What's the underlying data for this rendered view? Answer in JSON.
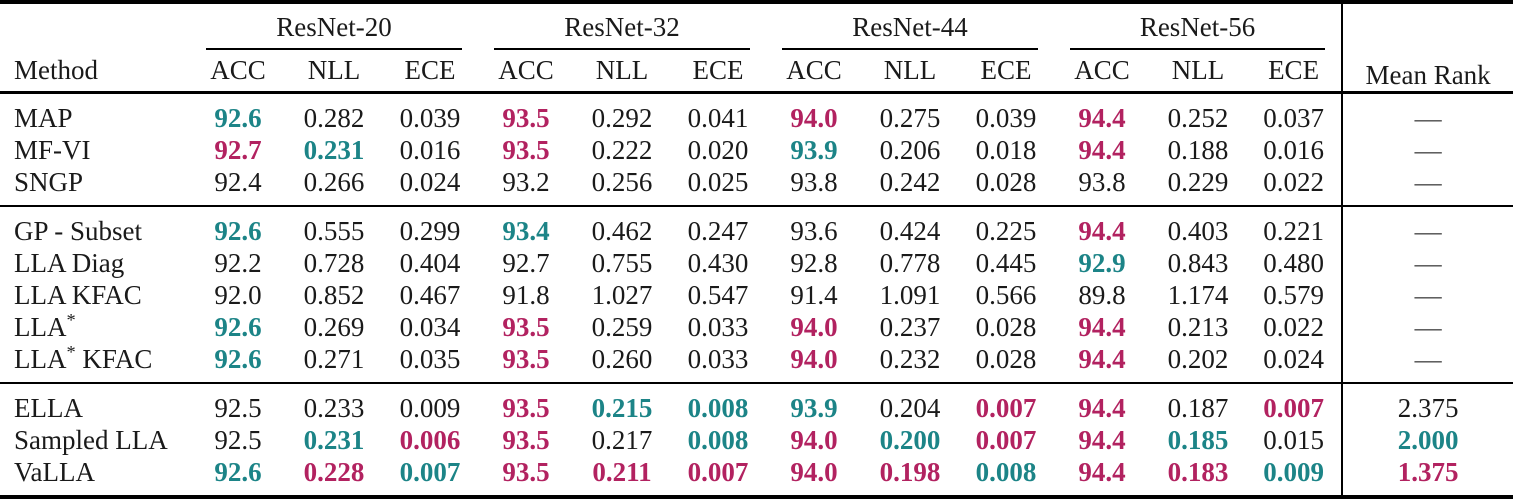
{
  "colors": {
    "teal": "#1c8487",
    "magenta": "#b22260",
    "text": "#1a1a1a",
    "rule": "#000000"
  },
  "table": {
    "method_header": "Method",
    "mean_rank_header": "Mean Rank",
    "groups": [
      {
        "label": "ResNet-20"
      },
      {
        "label": "ResNet-32"
      },
      {
        "label": "ResNet-44"
      },
      {
        "label": "ResNet-56"
      }
    ],
    "metrics": [
      "ACC",
      "NLL",
      "ECE"
    ],
    "no_rank_symbol": "—",
    "sections": [
      {
        "rows": [
          {
            "method": "MAP",
            "cells": [
              [
                "92.6",
                "t"
              ],
              [
                "0.282",
                ""
              ],
              [
                "0.039",
                ""
              ],
              [
                "93.5",
                "m"
              ],
              [
                "0.292",
                ""
              ],
              [
                "0.041",
                ""
              ],
              [
                "94.0",
                "m"
              ],
              [
                "0.275",
                ""
              ],
              [
                "0.039",
                ""
              ],
              [
                "94.4",
                "m"
              ],
              [
                "0.252",
                ""
              ],
              [
                "0.037",
                ""
              ]
            ],
            "rank": "—",
            "rank_c": ""
          },
          {
            "method": "MF-VI",
            "cells": [
              [
                "92.7",
                "m"
              ],
              [
                "0.231",
                "t"
              ],
              [
                "0.016",
                ""
              ],
              [
                "93.5",
                "m"
              ],
              [
                "0.222",
                ""
              ],
              [
                "0.020",
                ""
              ],
              [
                "93.9",
                "t"
              ],
              [
                "0.206",
                ""
              ],
              [
                "0.018",
                ""
              ],
              [
                "94.4",
                "m"
              ],
              [
                "0.188",
                ""
              ],
              [
                "0.016",
                ""
              ]
            ],
            "rank": "—",
            "rank_c": ""
          },
          {
            "method": "SNGP",
            "cells": [
              [
                "92.4",
                ""
              ],
              [
                "0.266",
                ""
              ],
              [
                "0.024",
                ""
              ],
              [
                "93.2",
                ""
              ],
              [
                "0.256",
                ""
              ],
              [
                "0.025",
                ""
              ],
              [
                "93.8",
                ""
              ],
              [
                "0.242",
                ""
              ],
              [
                "0.028",
                ""
              ],
              [
                "93.8",
                ""
              ],
              [
                "0.229",
                ""
              ],
              [
                "0.022",
                ""
              ]
            ],
            "rank": "—",
            "rank_c": ""
          }
        ]
      },
      {
        "rows": [
          {
            "method": "GP - Subset",
            "cells": [
              [
                "92.6",
                "t"
              ],
              [
                "0.555",
                ""
              ],
              [
                "0.299",
                ""
              ],
              [
                "93.4",
                "t"
              ],
              [
                "0.462",
                ""
              ],
              [
                "0.247",
                ""
              ],
              [
                "93.6",
                ""
              ],
              [
                "0.424",
                ""
              ],
              [
                "0.225",
                ""
              ],
              [
                "94.4",
                "m"
              ],
              [
                "0.403",
                ""
              ],
              [
                "0.221",
                ""
              ]
            ],
            "rank": "—",
            "rank_c": ""
          },
          {
            "method": "LLA Diag",
            "cells": [
              [
                "92.2",
                ""
              ],
              [
                "0.728",
                ""
              ],
              [
                "0.404",
                ""
              ],
              [
                "92.7",
                ""
              ],
              [
                "0.755",
                ""
              ],
              [
                "0.430",
                ""
              ],
              [
                "92.8",
                ""
              ],
              [
                "0.778",
                ""
              ],
              [
                "0.445",
                ""
              ],
              [
                "92.9",
                "t"
              ],
              [
                "0.843",
                ""
              ],
              [
                "0.480",
                ""
              ]
            ],
            "rank": "—",
            "rank_c": ""
          },
          {
            "method": "LLA KFAC",
            "cells": [
              [
                "92.0",
                ""
              ],
              [
                "0.852",
                ""
              ],
              [
                "0.467",
                ""
              ],
              [
                "91.8",
                ""
              ],
              [
                "1.027",
                ""
              ],
              [
                "0.547",
                ""
              ],
              [
                "91.4",
                ""
              ],
              [
                "1.091",
                ""
              ],
              [
                "0.566",
                ""
              ],
              [
                "89.8",
                ""
              ],
              [
                "1.174",
                ""
              ],
              [
                "0.579",
                ""
              ]
            ],
            "rank": "—",
            "rank_c": ""
          },
          {
            "method": "LLA*",
            "cells": [
              [
                "92.6",
                "t"
              ],
              [
                "0.269",
                ""
              ],
              [
                "0.034",
                ""
              ],
              [
                "93.5",
                "m"
              ],
              [
                "0.259",
                ""
              ],
              [
                "0.033",
                ""
              ],
              [
                "94.0",
                "m"
              ],
              [
                "0.237",
                ""
              ],
              [
                "0.028",
                ""
              ],
              [
                "94.4",
                "m"
              ],
              [
                "0.213",
                ""
              ],
              [
                "0.022",
                ""
              ]
            ],
            "rank": "—",
            "rank_c": ""
          },
          {
            "method": "LLA* KFAC",
            "cells": [
              [
                "92.6",
                "t"
              ],
              [
                "0.271",
                ""
              ],
              [
                "0.035",
                ""
              ],
              [
                "93.5",
                "m"
              ],
              [
                "0.260",
                ""
              ],
              [
                "0.033",
                ""
              ],
              [
                "94.0",
                "m"
              ],
              [
                "0.232",
                ""
              ],
              [
                "0.028",
                ""
              ],
              [
                "94.4",
                "m"
              ],
              [
                "0.202",
                ""
              ],
              [
                "0.024",
                ""
              ]
            ],
            "rank": "—",
            "rank_c": ""
          }
        ]
      },
      {
        "rows": [
          {
            "method": "ELLA",
            "cells": [
              [
                "92.5",
                ""
              ],
              [
                "0.233",
                ""
              ],
              [
                "0.009",
                ""
              ],
              [
                "93.5",
                "m"
              ],
              [
                "0.215",
                "t"
              ],
              [
                "0.008",
                "t"
              ],
              [
                "93.9",
                "t"
              ],
              [
                "0.204",
                ""
              ],
              [
                "0.007",
                "m"
              ],
              [
                "94.4",
                "m"
              ],
              [
                "0.187",
                ""
              ],
              [
                "0.007",
                "m"
              ]
            ],
            "rank": "2.375",
            "rank_c": ""
          },
          {
            "method": "Sampled LLA",
            "cells": [
              [
                "92.5",
                ""
              ],
              [
                "0.231",
                "t"
              ],
              [
                "0.006",
                "m"
              ],
              [
                "93.5",
                "m"
              ],
              [
                "0.217",
                ""
              ],
              [
                "0.008",
                "t"
              ],
              [
                "94.0",
                "m"
              ],
              [
                "0.200",
                "t"
              ],
              [
                "0.007",
                "m"
              ],
              [
                "94.4",
                "m"
              ],
              [
                "0.185",
                "t"
              ],
              [
                "0.015",
                ""
              ]
            ],
            "rank": "2.000",
            "rank_c": "t"
          },
          {
            "method": "VaLLA",
            "cells": [
              [
                "92.6",
                "t"
              ],
              [
                "0.228",
                "m"
              ],
              [
                "0.007",
                "t"
              ],
              [
                "93.5",
                "m"
              ],
              [
                "0.211",
                "m"
              ],
              [
                "0.007",
                "m"
              ],
              [
                "94.0",
                "m"
              ],
              [
                "0.198",
                "m"
              ],
              [
                "0.008",
                "t"
              ],
              [
                "94.4",
                "m"
              ],
              [
                "0.183",
                "m"
              ],
              [
                "0.009",
                "t"
              ]
            ],
            "rank": "1.375",
            "rank_c": "m"
          }
        ]
      }
    ]
  }
}
